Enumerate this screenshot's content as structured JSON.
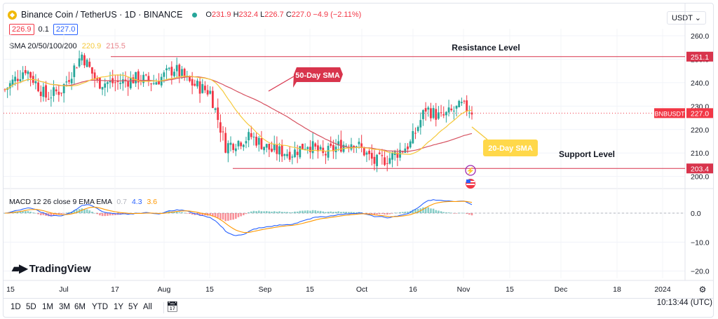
{
  "header": {
    "symbol_title": "Binance Coin / TetherUS · 1D · BINANCE",
    "ohlc_o_label": "O",
    "ohlc_o": "231.9",
    "ohlc_h_label": "H",
    "ohlc_h": "232.4",
    "ohlc_l_label": "L",
    "ohlc_l": "226.7",
    "ohlc_c_label": "C",
    "ohlc_c": "227.0",
    "change": "−4.9 (−2.11%)",
    "bid": "226.9",
    "spread": "0.1",
    "ask": "227.0",
    "currency": "USDT"
  },
  "indicators": {
    "sma_label": "SMA 20/50/100/200",
    "sma20_value": "220.9",
    "sma50_value": "215.5",
    "macd_label": "MACD 12 26 close 9 EMA EMA",
    "macd_hist": "0.7",
    "macd_line": "4.3",
    "macd_signal": "3.6"
  },
  "colors": {
    "up": "#26a69a",
    "down": "#f23645",
    "sma20": "#f5c93b",
    "sma50": "#d6505f",
    "macd": "#2962ff",
    "signal": "#ff9800",
    "annot_red": "#d8344c",
    "annot_yellow": "#ffd84a"
  },
  "annotations": {
    "resistance": "Resistance Level",
    "support": "Support Level",
    "sma50_callout": "50-Day SMA",
    "sma20_callout": "20-Day SMA"
  },
  "icons": [
    "binance-coin-icon",
    "flash-icon",
    "us-flag-icon",
    "tradingview-logo",
    "settings-icon",
    "date-range-icon"
  ],
  "logo_text": "TradingView",
  "time_buttons": [
    "1D",
    "5D",
    "1M",
    "3M",
    "6M",
    "YTD",
    "1Y",
    "5Y",
    "All"
  ],
  "clock": "10:13:44 (UTC)",
  "chart_data": {
    "type": "candlestick",
    "title": "Binance Coin / TetherUS · 1D · BINANCE",
    "price_axis_ticks": [
      260,
      250,
      240,
      230,
      220,
      210,
      200
    ],
    "price_axis_format": "0.0",
    "ylim": [
      196,
      263
    ],
    "macd_axis_ticks": [
      0,
      -10,
      -20
    ],
    "macd_axis_format": "0.0",
    "macd_ylim": [
      -22.5,
      7.5
    ],
    "x_tick_labels": [
      "15",
      "Jul",
      "17",
      "Aug",
      "15",
      "Sep",
      "15",
      "Oct",
      "16",
      "Nov",
      "15",
      "Dec",
      "18",
      "2024"
    ],
    "price_labels": [
      {
        "label": "",
        "value": 251.1,
        "color": "#d8344c"
      },
      {
        "label": "BNBUSDT",
        "value": 227.0,
        "color": "#f23645"
      },
      {
        "label": "",
        "value": 203.4,
        "color": "#d8344c"
      }
    ],
    "resistance_level": 251.1,
    "support_level": 203.4,
    "last_price": 227.0,
    "grid": true
  }
}
